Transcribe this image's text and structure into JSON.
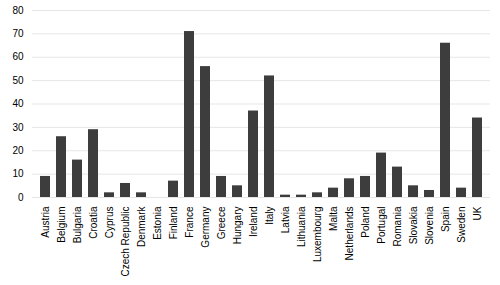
{
  "chart_data": {
    "type": "bar",
    "categories": [
      "Austria",
      "Belgium",
      "Bulgaria",
      "Croatia",
      "Cyprus",
      "Czech Republic",
      "Denmark",
      "Estonia",
      "Finland",
      "France",
      "Germany",
      "Greece",
      "Hungary",
      "Ireland",
      "Italy",
      "Latvia",
      "Lithuania",
      "Luxembourg",
      "Malta",
      "Netherlands",
      "Poland",
      "Portugal",
      "Romania",
      "Slovakia",
      "Slovenia",
      "Spain",
      "Sweden",
      "UK"
    ],
    "values": [
      9,
      26,
      16,
      29,
      2,
      6,
      2,
      0,
      7,
      71,
      56,
      9,
      5,
      37,
      52,
      1,
      1,
      2,
      4,
      8,
      9,
      19,
      13,
      5,
      3,
      66,
      4,
      34
    ],
    "color": "#3d3d3d",
    "ylim": [
      0,
      80
    ],
    "yticks": [
      0,
      10,
      20,
      30,
      40,
      50,
      60,
      70,
      80
    ],
    "grid": true
  }
}
